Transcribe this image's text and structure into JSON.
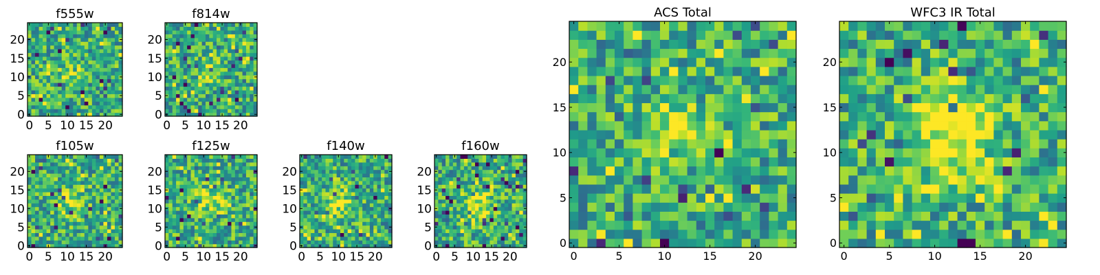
{
  "chart_data": [
    {
      "type": "heatmap",
      "title": "f555w",
      "xlabel": "",
      "ylabel": "",
      "xlim": [
        0,
        24
      ],
      "ylim": [
        0,
        24
      ],
      "xticks": [
        0,
        5,
        10,
        15,
        20
      ],
      "yticks": [
        0,
        5,
        10,
        15,
        20
      ],
      "grid": false,
      "colormap": "viridis",
      "pixels": [
        25,
        25
      ],
      "hotspot": {
        "x": 11,
        "y": 11,
        "radius": 2.5,
        "strength": 0.15
      },
      "seed": 11
    },
    {
      "type": "heatmap",
      "title": "f814w",
      "xlabel": "",
      "ylabel": "",
      "xlim": [
        0,
        24
      ],
      "ylim": [
        0,
        24
      ],
      "xticks": [
        0,
        5,
        10,
        15,
        20
      ],
      "yticks": [
        0,
        5,
        10,
        15,
        20
      ],
      "grid": false,
      "colormap": "viridis",
      "pixels": [
        25,
        25
      ],
      "hotspot": {
        "x": 11,
        "y": 12,
        "radius": 2.5,
        "strength": 0.2
      },
      "seed": 23
    },
    {
      "type": "heatmap",
      "title": "f105w",
      "xlabel": "",
      "ylabel": "",
      "xlim": [
        0,
        24
      ],
      "ylim": [
        0,
        24
      ],
      "xticks": [
        0,
        5,
        10,
        15,
        20
      ],
      "yticks": [
        0,
        5,
        10,
        15,
        20
      ],
      "grid": false,
      "colormap": "viridis",
      "pixels": [
        25,
        25
      ],
      "hotspot": {
        "x": 11,
        "y": 12,
        "radius": 3,
        "strength": 0.25
      },
      "seed": 37
    },
    {
      "type": "heatmap",
      "title": "f125w",
      "xlabel": "",
      "ylabel": "",
      "xlim": [
        0,
        24
      ],
      "ylim": [
        0,
        24
      ],
      "xticks": [
        0,
        5,
        10,
        15,
        20
      ],
      "yticks": [
        0,
        5,
        10,
        15,
        20
      ],
      "grid": false,
      "colormap": "viridis",
      "pixels": [
        25,
        25
      ],
      "hotspot": {
        "x": 12,
        "y": 12,
        "radius": 3,
        "strength": 0.25
      },
      "seed": 41
    },
    {
      "type": "heatmap",
      "title": "f140w",
      "xlabel": "",
      "ylabel": "",
      "xlim": [
        0,
        24
      ],
      "ylim": [
        0,
        24
      ],
      "xticks": [
        0,
        5,
        10,
        15,
        20
      ],
      "yticks": [
        0,
        5,
        10,
        15,
        20
      ],
      "grid": false,
      "colormap": "viridis",
      "pixels": [
        25,
        25
      ],
      "hotspot": {
        "x": 10,
        "y": 11,
        "radius": 3,
        "strength": 0.3
      },
      "seed": 53
    },
    {
      "type": "heatmap",
      "title": "f160w",
      "xlabel": "",
      "ylabel": "",
      "xlim": [
        0,
        24
      ],
      "ylim": [
        0,
        24
      ],
      "xticks": [
        0,
        5,
        10,
        15,
        20
      ],
      "yticks": [
        0,
        5,
        10,
        15,
        20
      ],
      "grid": false,
      "colormap": "viridis",
      "pixels": [
        25,
        25
      ],
      "hotspot": {
        "x": 11,
        "y": 11,
        "radius": 3,
        "strength": 0.35
      },
      "seed": 67
    },
    {
      "type": "heatmap",
      "title": "ACS Total",
      "xlabel": "",
      "ylabel": "",
      "xlim": [
        0,
        24
      ],
      "ylim": [
        0,
        24
      ],
      "xticks": [
        0,
        5,
        10,
        15,
        20
      ],
      "yticks": [
        0,
        5,
        10,
        15,
        20
      ],
      "grid": false,
      "colormap": "viridis",
      "pixels": [
        25,
        25
      ],
      "hotspot": {
        "x": 11,
        "y": 12,
        "radius": 2.5,
        "strength": 0.35
      },
      "seed": 79
    },
    {
      "type": "heatmap",
      "title": "WFC3 IR Total",
      "xlabel": "",
      "ylabel": "",
      "xlim": [
        0,
        24
      ],
      "ylim": [
        0,
        24
      ],
      "xticks": [
        0,
        5,
        10,
        15,
        20
      ],
      "yticks": [
        0,
        5,
        10,
        15,
        20
      ],
      "grid": false,
      "colormap": "viridis",
      "pixels": [
        25,
        25
      ],
      "hotspot": {
        "x": 12,
        "y": 12,
        "radius": 3.5,
        "strength": 0.45
      },
      "seed": 97
    }
  ]
}
